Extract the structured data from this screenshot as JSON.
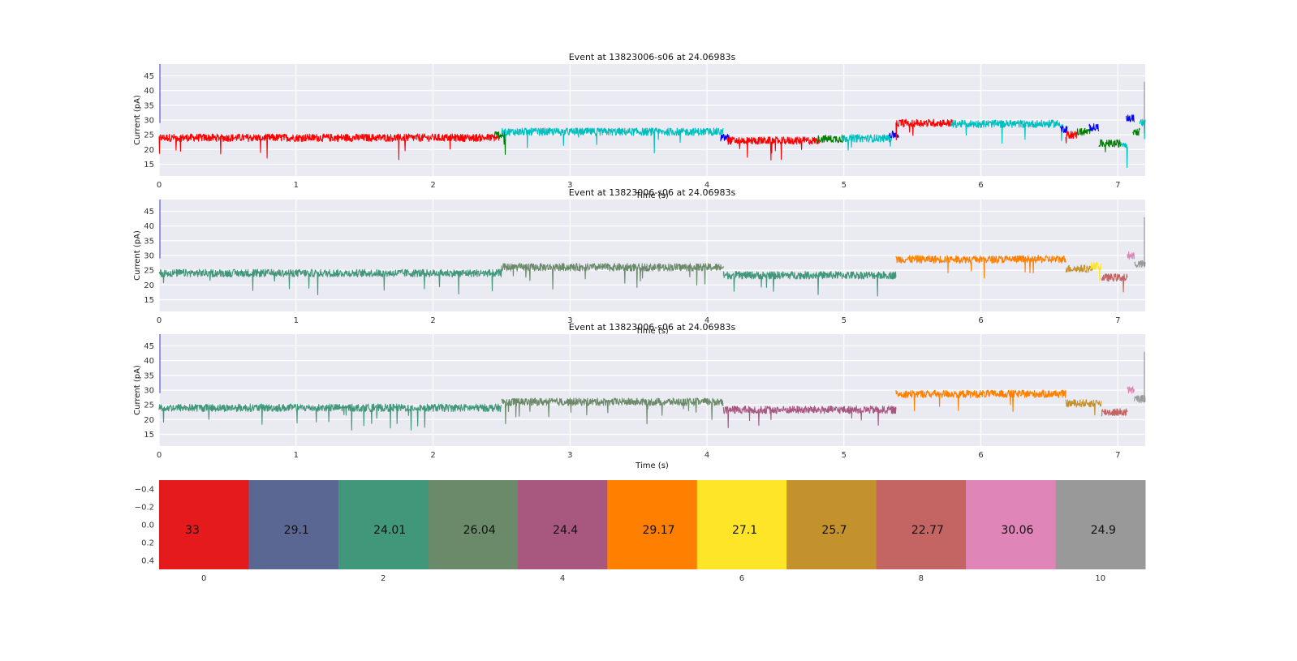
{
  "chart_data": [
    {
      "type": "line",
      "title": "Event at 13823006-s06 at 24.06983s",
      "xlabel": "Time (s)",
      "ylabel": "Current (pA)",
      "xlim": [
        0,
        7.2
      ],
      "ylim": [
        11,
        49
      ],
      "xticks": [
        "0",
        "1",
        "2",
        "3",
        "4",
        "5",
        "6",
        "7"
      ],
      "yticks": [
        "15",
        "20",
        "25",
        "30",
        "35",
        "40",
        "45"
      ],
      "grid": true,
      "segments": [
        {
          "x0": 0.0,
          "x1": 2.48,
          "level": 24.0,
          "color": "#ff0000"
        },
        {
          "x0": 2.45,
          "x1": 2.53,
          "level": 25.0,
          "color": "#008000"
        },
        {
          "x0": 2.5,
          "x1": 4.12,
          "level": 26.0,
          "color": "#00bfbf"
        },
        {
          "x0": 4.1,
          "x1": 4.17,
          "level": 24.0,
          "color": "#0000ff"
        },
        {
          "x0": 4.15,
          "x1": 4.82,
          "level": 23.0,
          "color": "#ff0000"
        },
        {
          "x0": 4.8,
          "x1": 5.0,
          "level": 23.6,
          "color": "#008000"
        },
        {
          "x0": 4.98,
          "x1": 5.35,
          "level": 23.8,
          "color": "#00bfbf"
        },
        {
          "x0": 5.33,
          "x1": 5.4,
          "level": 25.0,
          "color": "#0000ff"
        },
        {
          "x0": 5.38,
          "x1": 5.8,
          "level": 29.0,
          "color": "#ff0000"
        },
        {
          "x0": 5.78,
          "x1": 6.6,
          "level": 28.7,
          "color": "#00bfbf"
        },
        {
          "x0": 6.58,
          "x1": 6.63,
          "level": 27.0,
          "color": "#0000ff"
        },
        {
          "x0": 6.62,
          "x1": 6.7,
          "level": 25.0,
          "color": "#ff0000"
        },
        {
          "x0": 6.7,
          "x1": 6.8,
          "level": 26.0,
          "color": "#008000"
        },
        {
          "x0": 6.79,
          "x1": 6.86,
          "level": 27.5,
          "color": "#0000ff"
        },
        {
          "x0": 6.86,
          "x1": 7.02,
          "level": 22.0,
          "color": "#008000"
        },
        {
          "x0": 7.02,
          "x1": 7.07,
          "level": 22.0,
          "color": "#00bfbf"
        },
        {
          "x0": 7.06,
          "x1": 7.12,
          "level": 30.5,
          "color": "#0000ff"
        },
        {
          "x0": 7.11,
          "x1": 7.16,
          "level": 26.0,
          "color": "#008000"
        },
        {
          "x0": 7.16,
          "x1": 7.2,
          "level": 29.0,
          "color": "#00bfbf"
        }
      ]
    },
    {
      "type": "line",
      "title": "Event at 13823006-s06 at 24.06983s",
      "xlabel": "Time (s)",
      "ylabel": "Current (pA)",
      "xlim": [
        0,
        7.2
      ],
      "ylim": [
        11,
        49
      ],
      "xticks": [
        "0",
        "1",
        "2",
        "3",
        "4",
        "5",
        "6",
        "7"
      ],
      "yticks": [
        "15",
        "20",
        "25",
        "30",
        "35",
        "40",
        "45"
      ],
      "grid": true,
      "segments": [
        {
          "x0": 0.0,
          "x1": 2.5,
          "level": 24.0,
          "color": "#41977a"
        },
        {
          "x0": 2.5,
          "x1": 4.12,
          "level": 26.0,
          "color": "#6a8a6a"
        },
        {
          "x0": 4.12,
          "x1": 5.38,
          "level": 23.3,
          "color": "#41977a"
        },
        {
          "x0": 5.38,
          "x1": 6.62,
          "level": 28.7,
          "color": "#ff8000"
        },
        {
          "x0": 6.62,
          "x1": 6.82,
          "level": 25.5,
          "color": "#c4922d"
        },
        {
          "x0": 6.8,
          "x1": 6.88,
          "level": 26.5,
          "color": "#ffe528"
        },
        {
          "x0": 6.88,
          "x1": 7.07,
          "level": 22.5,
          "color": "#c46564"
        },
        {
          "x0": 7.07,
          "x1": 7.12,
          "level": 30.0,
          "color": "#e085b8"
        },
        {
          "x0": 7.12,
          "x1": 7.2,
          "level": 27.0,
          "color": "#999999"
        }
      ]
    },
    {
      "type": "line",
      "title": "Event at 13823006-s06 at 24.06983s",
      "xlabel": "Time (s)",
      "ylabel": "Current (pA)",
      "xlim": [
        0,
        7.2
      ],
      "ylim": [
        11,
        49
      ],
      "xticks": [
        "0",
        "1",
        "2",
        "3",
        "4",
        "5",
        "6",
        "7"
      ],
      "yticks": [
        "15",
        "20",
        "25",
        "30",
        "35",
        "40",
        "45"
      ],
      "grid": true,
      "segments": [
        {
          "x0": 0.0,
          "x1": 2.5,
          "level": 24.0,
          "color": "#41977a"
        },
        {
          "x0": 2.5,
          "x1": 4.12,
          "level": 26.0,
          "color": "#6a8a6a"
        },
        {
          "x0": 4.12,
          "x1": 5.38,
          "level": 23.3,
          "color": "#a8577e"
        },
        {
          "x0": 5.38,
          "x1": 6.62,
          "level": 28.7,
          "color": "#ff8000"
        },
        {
          "x0": 6.62,
          "x1": 6.88,
          "level": 25.5,
          "color": "#c4922d"
        },
        {
          "x0": 6.88,
          "x1": 7.07,
          "level": 22.5,
          "color": "#c46564"
        },
        {
          "x0": 7.07,
          "x1": 7.12,
          "level": 30.0,
          "color": "#e085b8"
        },
        {
          "x0": 7.12,
          "x1": 7.2,
          "level": 27.0,
          "color": "#999999"
        }
      ]
    },
    {
      "type": "heatmap",
      "xticks": [
        "0",
        "2",
        "4",
        "6",
        "8",
        "10"
      ],
      "yticks": [
        "−0.4",
        "−0.2",
        "0.0",
        "0.2",
        "0.4"
      ],
      "xlim": [
        -0.5,
        10.5
      ],
      "ylim": [
        -0.5,
        0.5
      ],
      "cells": [
        {
          "label": "33",
          "color": "#e41a1c"
        },
        {
          "label": "29.1",
          "color": "#5b6793"
        },
        {
          "label": "24.01",
          "color": "#41977a"
        },
        {
          "label": "26.04",
          "color": "#6a8a6a"
        },
        {
          "label": "24.4",
          "color": "#a8577e"
        },
        {
          "label": "29.17",
          "color": "#ff7f00"
        },
        {
          "label": "27.1",
          "color": "#ffe528"
        },
        {
          "label": "25.7",
          "color": "#c4922d"
        },
        {
          "label": "22.77",
          "color": "#c46564"
        },
        {
          "label": "30.06",
          "color": "#e085b8"
        },
        {
          "label": "24.9",
          "color": "#999999"
        }
      ]
    }
  ]
}
